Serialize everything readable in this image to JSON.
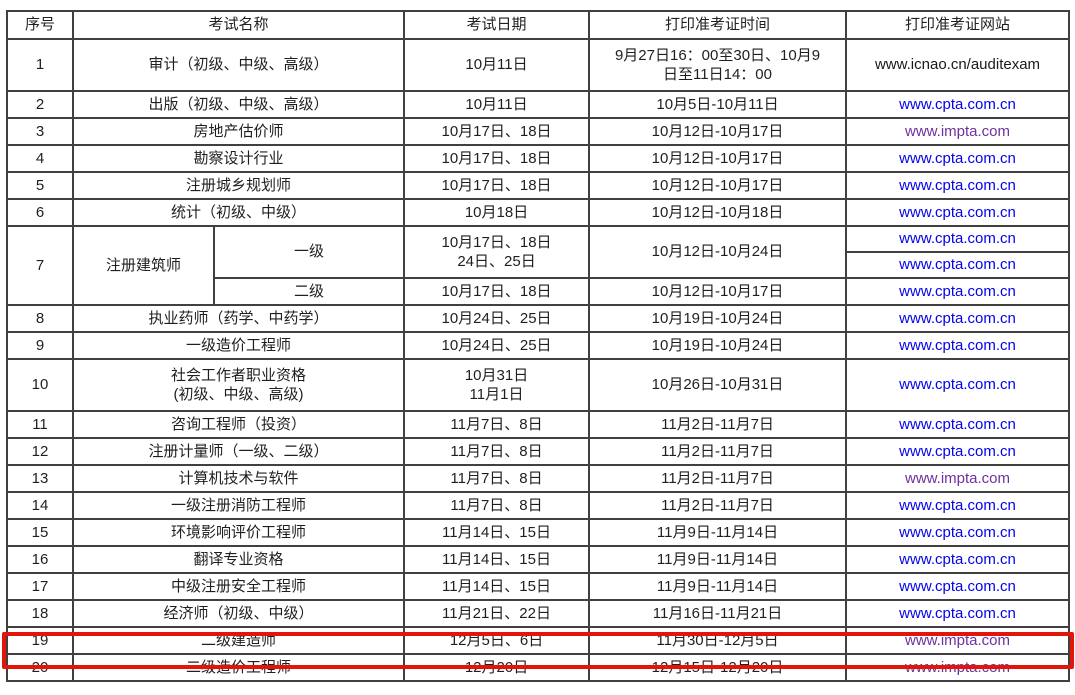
{
  "colors": {
    "link_blue": "#0202ee",
    "link_purple": "#70309f",
    "link_dark": "#1a1a1a",
    "border": "#404040",
    "text": "#1f1f1f",
    "highlight_red": "#e1150a",
    "background": "#ffffff"
  },
  "highlight": {
    "target_row_no": "19",
    "color": "#e1150a"
  },
  "table": {
    "headers": {
      "no": "序号",
      "name": "考试名称",
      "date": "考试日期",
      "print_time": "打印准考证时间",
      "print_site": "打印准考证网站"
    },
    "rows": [
      {
        "no": "1",
        "name": "审计（初级、中级、高级）",
        "date": "10月11日",
        "time": "9月27日16：00至30日、10月9\n日至11日14：00",
        "site": "www.icnao.cn/auditexam",
        "site_color": "dark"
      },
      {
        "no": "2",
        "name": "出版（初级、中级、高级）",
        "date": "10月11日",
        "time": "10月5日-10月11日",
        "site": "www.cpta.com.cn",
        "site_color": "blue"
      },
      {
        "no": "3",
        "name": "房地产估价师",
        "date": "10月17日、18日",
        "time": "10月12日-10月17日",
        "site": "www.impta.com",
        "site_color": "purple"
      },
      {
        "no": "4",
        "name": "勘察设计行业",
        "date": "10月17日、18日",
        "time": "10月12日-10月17日",
        "site": "www.cpta.com.cn",
        "site_color": "blue"
      },
      {
        "no": "5",
        "name": "注册城乡规划师",
        "date": "10月17日、18日",
        "time": "10月12日-10月17日",
        "site": "www.cpta.com.cn",
        "site_color": "blue"
      },
      {
        "no": "6",
        "name": "统计（初级、中级）",
        "date": "10月18日",
        "time": "10月12日-10月18日",
        "site": "www.cpta.com.cn",
        "site_color": "blue"
      },
      {
        "no": "7",
        "name": "注册建筑师",
        "level1": {
          "label": "一级",
          "date": "10月17日、18日\n24日、25日",
          "time": "10月12日-10月24日",
          "site_a": "www.cpta.com.cn",
          "site_a_color": "blue",
          "site_b": "www.cpta.com.cn",
          "site_b_color": "blue"
        },
        "level2": {
          "label": "二级",
          "date": "10月17日、18日",
          "time": "10月12日-10月17日",
          "site": "www.cpta.com.cn",
          "site_color": "blue"
        }
      },
      {
        "no": "8",
        "name": "执业药师（药学、中药学）",
        "date": "10月24日、25日",
        "time": "10月19日-10月24日",
        "site": "www.cpta.com.cn",
        "site_color": "blue"
      },
      {
        "no": "9",
        "name": "一级造价工程师",
        "date": "10月24日、25日",
        "time": "10月19日-10月24日",
        "site": "www.cpta.com.cn",
        "site_color": "blue"
      },
      {
        "no": "10",
        "name": "社会工作者职业资格\n(初级、中级、高级)",
        "date": "10月31日\n11月1日",
        "time": "10月26日-10月31日",
        "site": "www.cpta.com.cn",
        "site_color": "blue"
      },
      {
        "no": "11",
        "name": "咨询工程师（投资）",
        "date": "11月7日、8日",
        "time": "11月2日-11月7日",
        "site": "www.cpta.com.cn",
        "site_color": "blue"
      },
      {
        "no": "12",
        "name": "注册计量师（一级、二级）",
        "date": "11月7日、8日",
        "time": "11月2日-11月7日",
        "site": "www.cpta.com.cn",
        "site_color": "blue"
      },
      {
        "no": "13",
        "name": "计算机技术与软件",
        "date": "11月7日、8日",
        "time": "11月2日-11月7日",
        "site": "www.impta.com",
        "site_color": "purple"
      },
      {
        "no": "14",
        "name": "一级注册消防工程师",
        "date": "11月7日、8日",
        "time": "11月2日-11月7日",
        "site": "www.cpta.com.cn",
        "site_color": "blue"
      },
      {
        "no": "15",
        "name": "环境影响评价工程师",
        "date": "11月14日、15日",
        "time": "11月9日-11月14日",
        "site": "www.cpta.com.cn",
        "site_color": "blue"
      },
      {
        "no": "16",
        "name": "翻译专业资格",
        "date": "11月14日、15日",
        "time": "11月9日-11月14日",
        "site": "www.cpta.com.cn",
        "site_color": "blue"
      },
      {
        "no": "17",
        "name": "中级注册安全工程师",
        "date": "11月14日、15日",
        "time": "11月9日-11月14日",
        "site": "www.cpta.com.cn",
        "site_color": "blue"
      },
      {
        "no": "18",
        "name": "经济师（初级、中级）",
        "date": "11月21日、22日",
        "time": "11月16日-11月21日",
        "site": "www.cpta.com.cn",
        "site_color": "blue"
      },
      {
        "no": "19",
        "name": "二级建造师",
        "date": "12月5日、6日",
        "time": "11月30日-12月5日",
        "site": "www.impta.com",
        "site_color": "purple"
      },
      {
        "no": "20",
        "name": "二级造价工程师",
        "date": "12月20日",
        "time": "12月15日-12月20日",
        "site": "www.impta.com",
        "site_color": "purple"
      }
    ]
  }
}
